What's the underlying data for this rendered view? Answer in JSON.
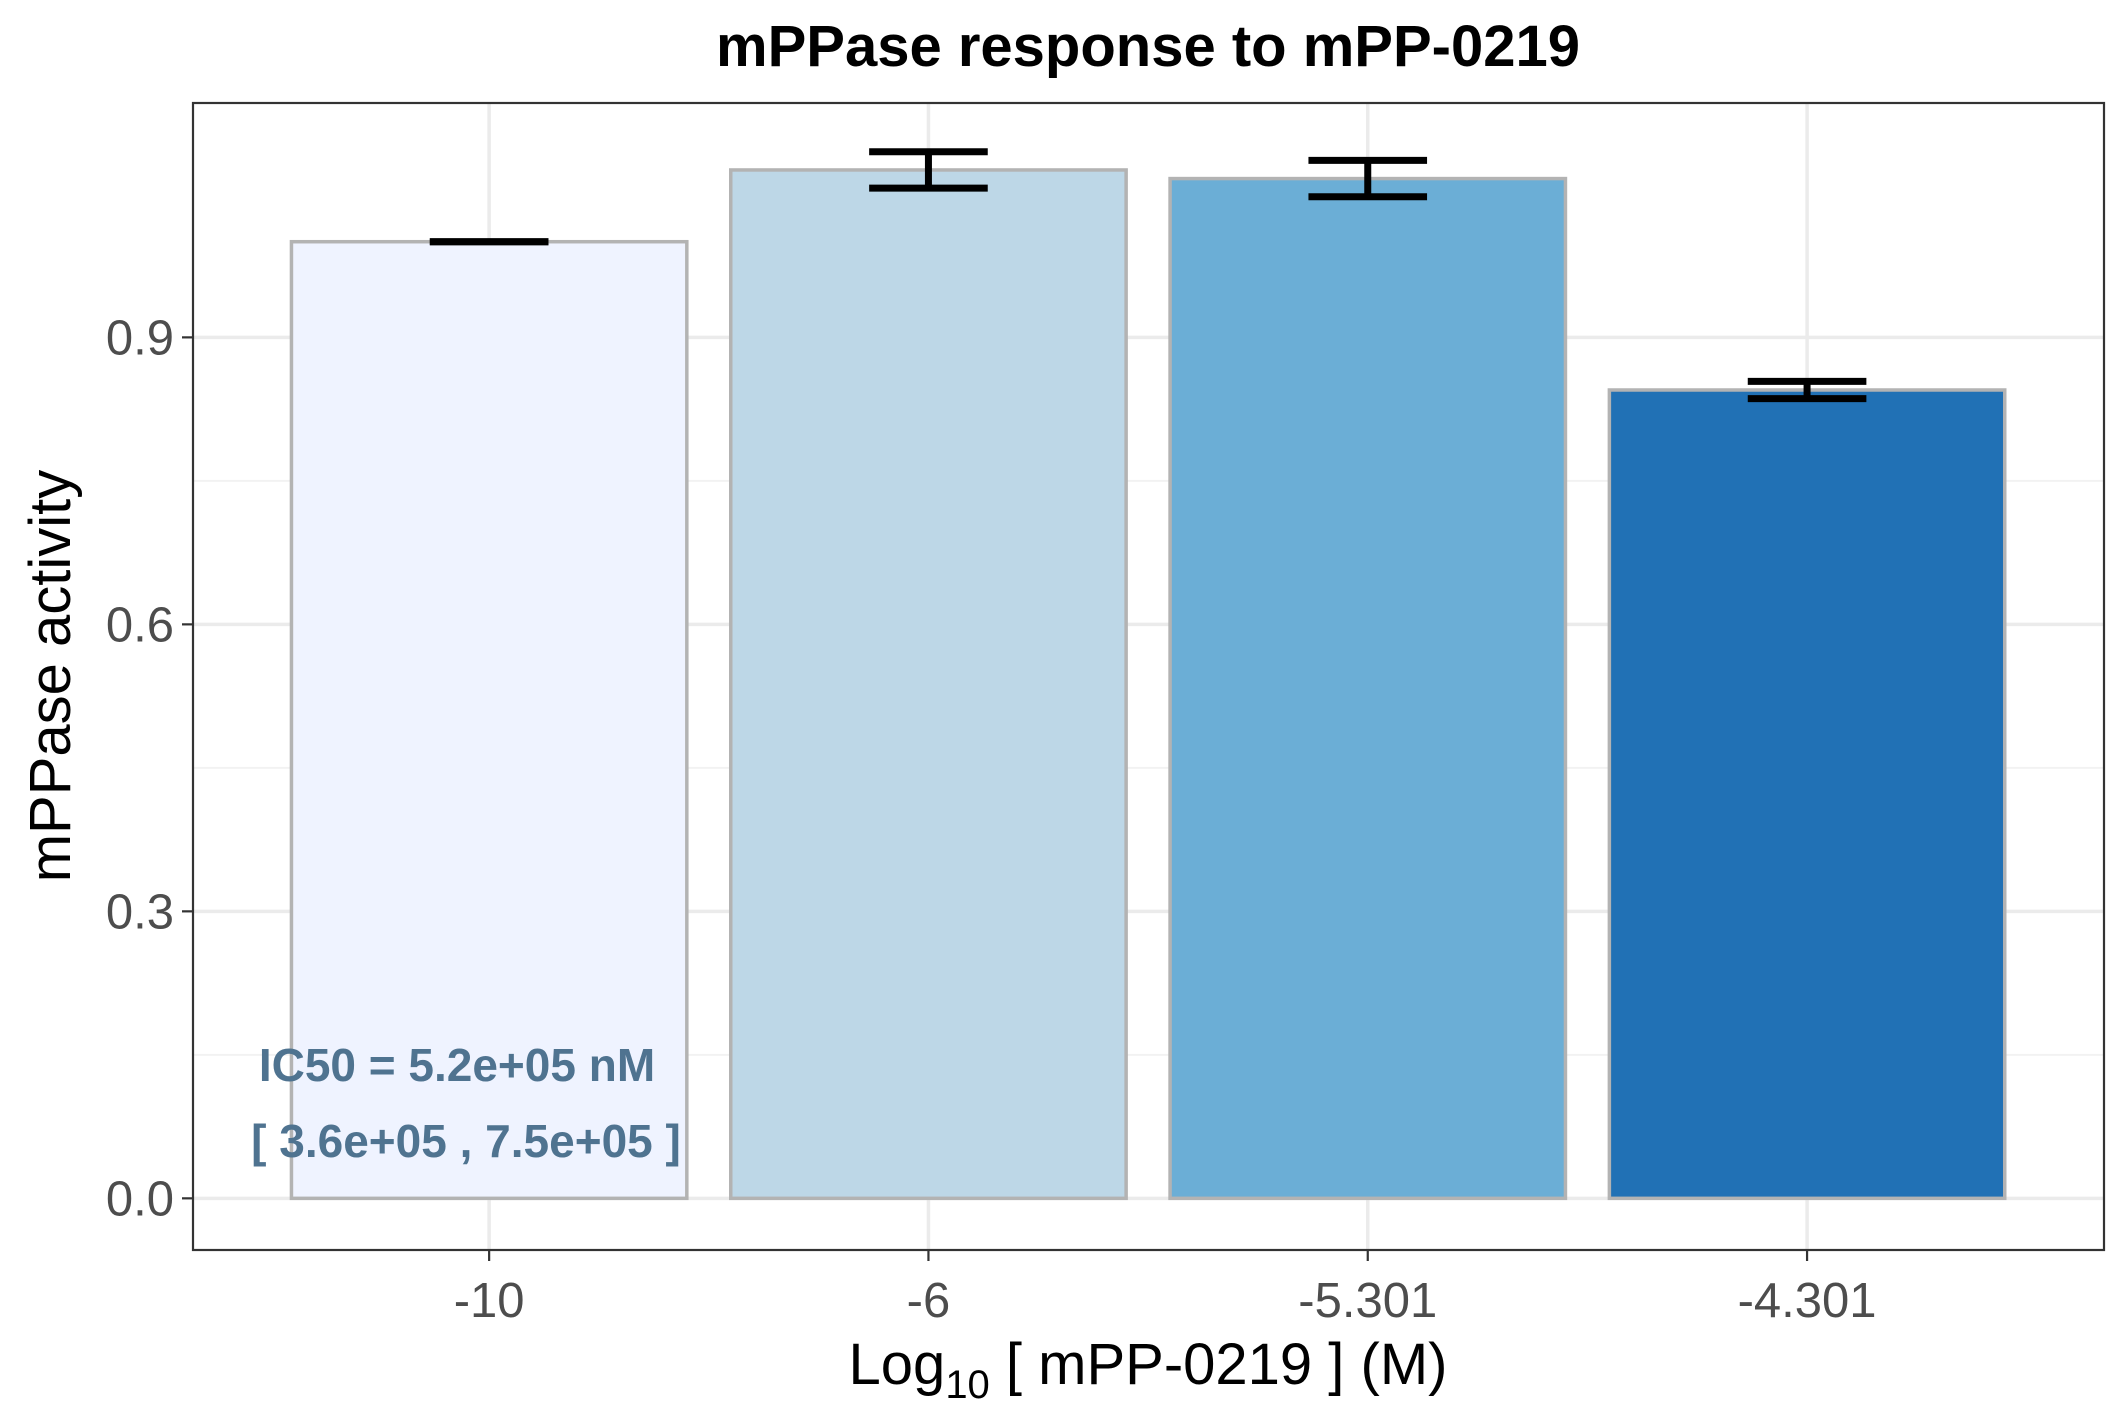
{
  "chart_data": {
    "type": "bar",
    "title": "mPPase response to mPP-0219",
    "xlabel": {
      "prefix": "Log",
      "subscript": "10",
      "suffix": " [ mPP-0219 ] (M)"
    },
    "ylabel": "mPPase activity",
    "categories": [
      "-10",
      "-6",
      "-5.301",
      "-4.301"
    ],
    "values": [
      1.0,
      1.075,
      1.066,
      0.845
    ],
    "error": [
      0.0,
      0.019,
      0.019,
      0.009
    ],
    "colors": [
      "#eff3ff",
      "#bdd7e7",
      "#6baed6",
      "#2171b5"
    ],
    "bar_outline": "#b3b3b3",
    "ylim": [
      -0.054,
      1.145
    ],
    "yticks": [
      0.0,
      0.3,
      0.6,
      0.9
    ],
    "ytick_labels": [
      "0.0",
      "0.3",
      "0.6",
      "0.9"
    ],
    "grid": true,
    "annotation": {
      "line1": "IC50 = 5.2e+05 nM",
      "line2": "[ 3.6e+05 , 7.5e+05 ]",
      "color": "#4f7390"
    }
  }
}
